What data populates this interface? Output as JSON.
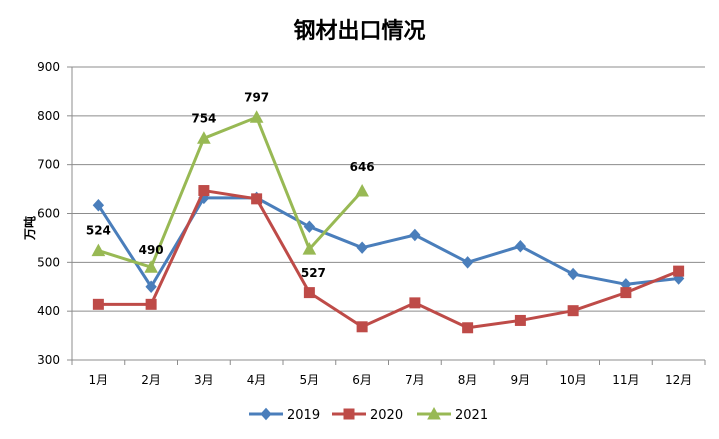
{
  "chart_data": {
    "type": "line",
    "title": "钢材出口情况",
    "xlabel": "",
    "ylabel": "万吨",
    "categories": [
      "1月",
      "2月",
      "3月",
      "4月",
      "5月",
      "6月",
      "7月",
      "8月",
      "9月",
      "10月",
      "11月",
      "12月"
    ],
    "ylim": [
      300,
      900
    ],
    "yticks": [
      "300",
      "400",
      "500",
      "600",
      "700",
      "800",
      "900"
    ],
    "grid": true,
    "legend": "bottom",
    "series": [
      {
        "name": "2019",
        "color": "#4a7ebb",
        "marker": "diamond",
        "values": [
          617,
          450,
          632,
          632,
          573,
          530,
          556,
          500,
          533,
          476,
          455,
          467
        ],
        "labels": []
      },
      {
        "name": "2020",
        "color": "#be4b48",
        "marker": "square",
        "values": [
          414,
          414,
          647,
          630,
          438,
          368,
          417,
          366,
          381,
          401,
          438,
          482
        ],
        "labels": []
      },
      {
        "name": "2021",
        "color": "#98b954",
        "marker": "triangle",
        "values": [
          524,
          490,
          754,
          797,
          527,
          646,
          null,
          null,
          null,
          null,
          null,
          null
        ],
        "labels": [
          "524",
          "490",
          "754",
          "797",
          "527",
          "646"
        ]
      }
    ]
  }
}
